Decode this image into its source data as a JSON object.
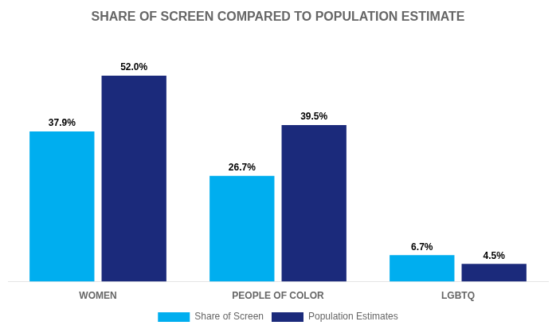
{
  "chart_data": {
    "type": "bar",
    "title": "SHARE OF SCREEN COMPARED TO POPULATION ESTIMATE",
    "categories": [
      "WOMEN",
      "PEOPLE OF COLOR",
      "LGBTQ"
    ],
    "series": [
      {
        "name": "Share of Screen",
        "color": "#00AEEF",
        "values": [
          37.9,
          26.7,
          6.7
        ],
        "value_labels": [
          "37.9%",
          "26.7%",
          "6.7%"
        ]
      },
      {
        "name": "Population Estimates",
        "color": "#1B2A7B",
        "values": [
          52.0,
          39.5,
          4.5
        ],
        "value_labels": [
          "52.0%",
          "39.5%",
          "4.5%"
        ]
      }
    ],
    "ylim": [
      0,
      62
    ],
    "grid": false,
    "legend": "bottom",
    "data_labels": true,
    "tick_labels": "x"
  }
}
